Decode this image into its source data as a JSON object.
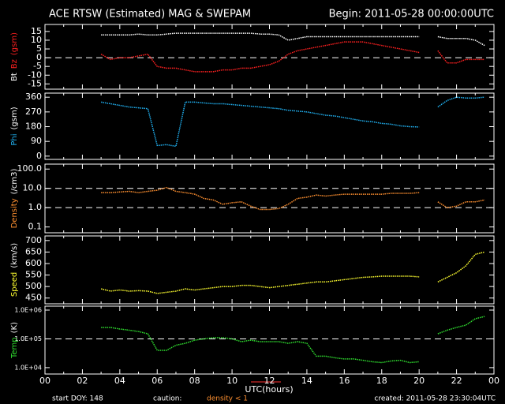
{
  "header": {
    "title": "ACE RTSW (Estimated) MAG & SWEPAM",
    "begin": "Begin: 2011-05-28 00:00:00UTC"
  },
  "time": {
    "xlabel": "UTC(hours)",
    "xlim": [
      0,
      24
    ],
    "xticks": [
      {
        "value": 0,
        "label": "00"
      },
      {
        "value": 2,
        "label": "02"
      },
      {
        "value": 4,
        "label": "04"
      },
      {
        "value": 6,
        "label": "06"
      },
      {
        "value": 8,
        "label": "08"
      },
      10,
      12,
      14,
      16,
      18,
      20,
      22,
      {
        "value": 24,
        "label": "00"
      }
    ],
    "x": [
      3,
      3.5,
      4,
      4.5,
      5,
      5.5,
      6,
      6.5,
      7,
      7.5,
      8,
      8.5,
      9,
      9.5,
      10,
      10.5,
      11,
      11.5,
      12,
      12.5,
      13,
      13.5,
      14,
      14.5,
      15,
      15.5,
      16,
      16.5,
      17,
      17.5,
      18,
      18.5,
      19,
      19.5,
      20,
      20.5,
      21,
      21.5,
      22,
      22.5,
      23,
      23.5
    ]
  },
  "chart_data": [
    {
      "type": "line",
      "ylabel": "(gsm)",
      "ylabel_color": "#ff2020",
      "ylim": [
        -18,
        19
      ],
      "yticks": [
        15,
        10,
        5,
        0,
        -5,
        -10,
        -15
      ],
      "ref_lines": [
        0
      ],
      "series": [
        {
          "name": "Bt",
          "color": "#ffffff",
          "values": [
            13,
            13,
            13,
            13,
            13.5,
            13,
            13,
            13.5,
            14,
            14,
            14,
            14,
            14,
            14,
            14,
            14,
            14,
            13.5,
            13.5,
            13,
            10,
            11,
            12,
            12,
            12,
            12,
            12,
            12,
            12,
            12,
            12,
            12,
            12,
            12,
            12,
            null,
            12,
            11,
            11,
            11,
            10,
            7
          ]
        },
        {
          "name": "Bz",
          "color": "#ff2020",
          "values": [
            2,
            -1,
            0,
            0,
            1,
            2,
            -5,
            -6,
            -6,
            -7,
            -8,
            -8,
            -8,
            -7,
            -7,
            -6,
            -6,
            -5,
            -4,
            -2,
            2,
            4,
            5,
            6,
            7,
            8,
            9,
            9,
            9,
            8,
            7,
            6,
            5,
            4,
            3,
            null,
            4,
            -3,
            -3,
            -1,
            -1,
            -1
          ]
        }
      ]
    },
    {
      "type": "line",
      "ylabel": "(gsm)",
      "ylim": [
        -20,
        385
      ],
      "yticks": [
        0,
        90,
        180,
        270,
        360
      ],
      "ref_lines": [],
      "series": [
        {
          "name": "Phi",
          "color": "#20b0f0",
          "values": [
            330,
            320,
            310,
            300,
            295,
            290,
            65,
            70,
            60,
            330,
            330,
            325,
            320,
            320,
            315,
            310,
            305,
            300,
            295,
            290,
            280,
            275,
            270,
            260,
            250,
            245,
            235,
            225,
            215,
            210,
            200,
            195,
            185,
            180,
            178,
            null,
            300,
            340,
            360,
            355,
            355,
            360
          ]
        }
      ]
    },
    {
      "type": "line",
      "log": true,
      "ylabel": "(/cm3)",
      "ylim": [
        0.05,
        180
      ],
      "yticks": [
        0.1,
        {
          "value": 1,
          "label": "1.0"
        },
        {
          "value": 10,
          "label": "10.0"
        },
        {
          "value": 100,
          "label": "100.0"
        }
      ],
      "ref_lines": [
        1,
        10
      ],
      "series": [
        {
          "name": "Density",
          "color": "#ff9030",
          "values": [
            6,
            6,
            6.5,
            7,
            6,
            7,
            8,
            11,
            7,
            6,
            5,
            3,
            2.5,
            1.5,
            1.8,
            2,
            1.2,
            0.8,
            0.8,
            0.9,
            1.5,
            3,
            3.5,
            4.5,
            4,
            4.5,
            5,
            5,
            5,
            5,
            5,
            5.5,
            5.5,
            5.5,
            6,
            null,
            2,
            1,
            1.2,
            2,
            2,
            2.5
          ]
        }
      ]
    },
    {
      "type": "line",
      "ylabel": "(km/s)",
      "ylim": [
        425,
        720
      ],
      "yticks": [
        450,
        500,
        550,
        600,
        650,
        700
      ],
      "ref_lines": [],
      "series": [
        {
          "name": "Speed",
          "color": "#ffff30",
          "values": [
            490,
            480,
            485,
            480,
            482,
            480,
            470,
            475,
            480,
            490,
            485,
            490,
            495,
            500,
            500,
            505,
            505,
            500,
            495,
            500,
            505,
            510,
            515,
            520,
            520,
            525,
            530,
            535,
            540,
            542,
            545,
            545,
            545,
            545,
            542,
            null,
            520,
            540,
            560,
            590,
            640,
            650
          ]
        }
      ]
    },
    {
      "type": "line",
      "log": true,
      "ylabel": "(K)",
      "ylim": [
        6000,
        1370000
      ],
      "yticks": [
        {
          "value": 10000,
          "label": "1.0E+04"
        },
        {
          "value": 100000,
          "label": "1.0E+05"
        },
        {
          "value": 1000000,
          "label": "1.0E+06"
        }
      ],
      "ref_lines": [
        100000
      ],
      "series": [
        {
          "name": "Temp",
          "color": "#30e030",
          "values": [
            250000,
            250000,
            220000,
            200000,
            180000,
            150000,
            40000,
            40000,
            60000,
            70000,
            90000,
            100000,
            110000,
            110000,
            100000,
            80000,
            90000,
            80000,
            80000,
            80000,
            70000,
            80000,
            70000,
            25000,
            25000,
            22000,
            20000,
            20000,
            18000,
            16000,
            15000,
            17000,
            18000,
            15000,
            16000,
            null,
            150000,
            200000,
            250000,
            300000,
            500000,
            600000
          ]
        }
      ]
    }
  ],
  "footer": {
    "start": "start DOY: 148",
    "caution": "caution:",
    "density_note": "density < 1",
    "created": "created: 2011-05-28 23:30:04UTC"
  }
}
